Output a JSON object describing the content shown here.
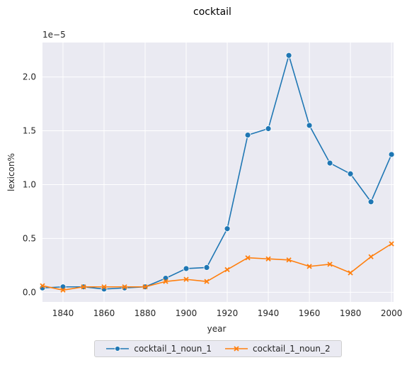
{
  "chart_data": {
    "type": "line",
    "title": "cocktail",
    "xlabel": "year",
    "ylabel": "lexicon%",
    "y_offset_label": "1e−5",
    "xlim": [
      1830,
      2001
    ],
    "ylim": [
      -0.09,
      2.32
    ],
    "x_ticks": [
      1840,
      1860,
      1880,
      1900,
      1920,
      1940,
      1960,
      1980,
      2000
    ],
    "y_ticks": [
      0.0,
      0.5,
      1.0,
      1.5,
      2.0
    ],
    "grid": true,
    "legend_position": "bottom-center",
    "x": [
      1830,
      1840,
      1850,
      1860,
      1870,
      1880,
      1890,
      1900,
      1910,
      1920,
      1930,
      1940,
      1950,
      1960,
      1970,
      1980,
      1990,
      2000
    ],
    "series": [
      {
        "name": "cocktail_1_noun_1",
        "color": "#1f77b4",
        "marker": "circle",
        "values": [
          0.04,
          0.05,
          0.05,
          0.03,
          0.04,
          0.05,
          0.13,
          0.22,
          0.23,
          0.59,
          1.46,
          1.52,
          2.2,
          1.55,
          1.2,
          1.1,
          0.84,
          1.28
        ]
      },
      {
        "name": "cocktail_1_noun_2",
        "color": "#ff7f0e",
        "marker": "x",
        "values": [
          0.06,
          0.02,
          0.05,
          0.05,
          0.05,
          0.05,
          0.1,
          0.12,
          0.1,
          0.21,
          0.32,
          0.31,
          0.3,
          0.24,
          0.26,
          0.18,
          0.33,
          0.45
        ]
      }
    ]
  }
}
